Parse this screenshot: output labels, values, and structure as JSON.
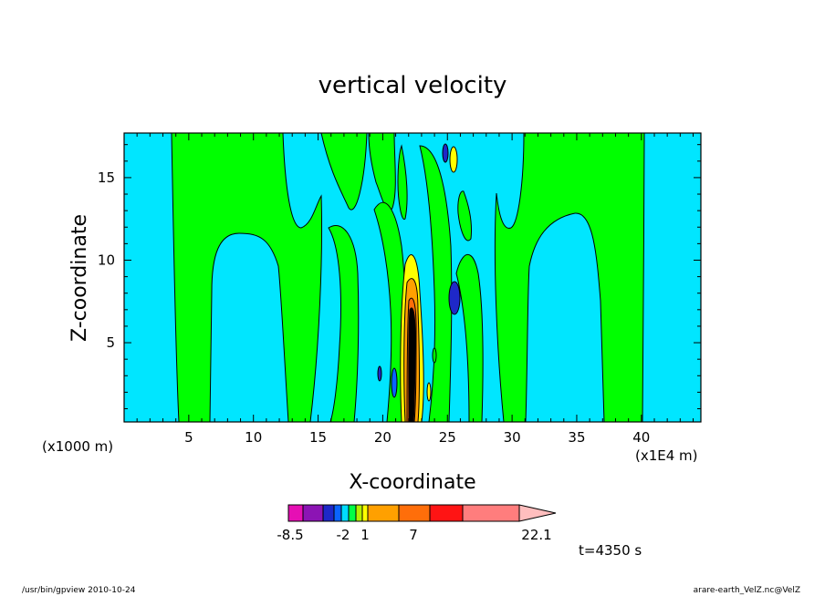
{
  "chart_data": {
    "type": "heatmap",
    "title": "vertical velocity",
    "xlabel": "X-coordinate",
    "ylabel": "Z-coordinate",
    "x_unit_left": "(x1000 m)",
    "x_unit_right": "(x1E4 m)",
    "x_ticks": [
      "5",
      "10",
      "15",
      "20",
      "25",
      "30",
      "35",
      "40"
    ],
    "x_tick_values": [
      5,
      10,
      15,
      20,
      25,
      30,
      35,
      40
    ],
    "y_ticks": [
      "5",
      "10",
      "15"
    ],
    "y_tick_values": [
      5,
      10,
      15
    ],
    "xlim": [
      0,
      44.6
    ],
    "ylim": [
      0.2,
      17.7
    ],
    "colorbar": {
      "labels": [
        "-8.5",
        "-2",
        "1",
        "7",
        "22.1"
      ],
      "colors": [
        "#e60fb4",
        "#8c14b4",
        "#1e28c8",
        "#0a64ff",
        "#00dcff",
        "#00ff46",
        "#b4f000",
        "#ffff00",
        "#ffa000",
        "#ff6e0a",
        "#ff1414",
        "#ff7d7d",
        "#ffbebe"
      ]
    },
    "time_label": "t=4350 s"
  },
  "footer": {
    "left": "/usr/bin/gpview   2010-10-24",
    "right": "arare-earth_VelZ.nc@VelZ"
  }
}
